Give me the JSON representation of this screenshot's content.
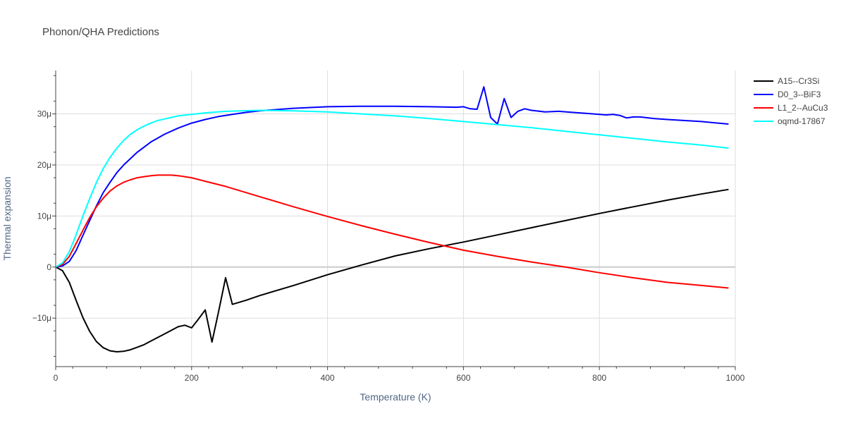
{
  "chart_data": {
    "type": "line",
    "title": "Phonon/QHA Predictions",
    "xlabel": "Temperature (K)",
    "ylabel": "Thermal expansion",
    "xlim": [
      0,
      1000
    ],
    "ylim": [
      -19.5,
      38.5
    ],
    "y_unit_suffix": "μ",
    "grid": true,
    "legend_position": "right",
    "x_ticks": [
      0,
      200,
      400,
      600,
      800,
      1000
    ],
    "y_ticks": [
      -10,
      0,
      10,
      20,
      30
    ],
    "x_tick_labels": [
      "0",
      "200",
      "400",
      "600",
      "800",
      "1000"
    ],
    "y_tick_labels": [
      "−10μ",
      "0",
      "10μ",
      "20μ",
      "30μ"
    ],
    "series": [
      {
        "name": "A15--Cr3Si",
        "color": "#000000",
        "x": [
          0,
          10,
          20,
          30,
          40,
          50,
          60,
          70,
          80,
          90,
          100,
          110,
          120,
          130,
          140,
          150,
          160,
          170,
          180,
          190,
          200,
          210,
          220,
          230,
          240,
          250,
          260,
          280,
          300,
          350,
          400,
          450,
          500,
          550,
          600,
          650,
          700,
          750,
          800,
          850,
          900,
          950,
          990
        ],
        "y": [
          0,
          -0.7,
          -3,
          -6.5,
          -9.9,
          -12.6,
          -14.6,
          -15.8,
          -16.4,
          -16.6,
          -16.5,
          -16.2,
          -15.7,
          -15.2,
          -14.5,
          -13.8,
          -13.1,
          -12.4,
          -11.7,
          -11.4,
          -11.9,
          -10.2,
          -8.4,
          -14.7,
          -8.5,
          -2.1,
          -7.3,
          -6.5,
          -5.6,
          -3.6,
          -1.5,
          0.4,
          2.2,
          3.6,
          4.9,
          6.3,
          7.7,
          9.1,
          10.5,
          11.8,
          13.1,
          14.3,
          15.2
        ]
      },
      {
        "name": "D0_3--BiF3",
        "color": "#0000ff",
        "x": [
          0,
          10,
          20,
          30,
          40,
          50,
          60,
          70,
          80,
          90,
          100,
          120,
          140,
          160,
          180,
          200,
          220,
          240,
          260,
          280,
          300,
          350,
          400,
          450,
          500,
          550,
          590,
          600,
          610,
          620,
          630,
          640,
          650,
          660,
          670,
          680,
          690,
          700,
          720,
          740,
          760,
          780,
          800,
          810,
          820,
          830,
          840,
          850,
          860,
          880,
          900,
          950,
          990
        ],
        "y": [
          0,
          0.2,
          1.1,
          3.2,
          6.2,
          9.1,
          12,
          14.6,
          16.6,
          18.5,
          20,
          22.5,
          24.5,
          26,
          27.2,
          28.2,
          28.9,
          29.5,
          29.9,
          30.3,
          30.6,
          31.1,
          31.4,
          31.5,
          31.5,
          31.4,
          31.3,
          31.4,
          31,
          30.9,
          35.3,
          29.3,
          28,
          33,
          29.3,
          30.5,
          31,
          30.7,
          30.4,
          30.5,
          30.3,
          30.1,
          29.9,
          29.8,
          29.9,
          29.7,
          29.2,
          29.4,
          29.4,
          29.1,
          28.9,
          28.5,
          28
        ]
      },
      {
        "name": "L1_2--AuCu3",
        "color": "#ff0000",
        "x": [
          0,
          10,
          20,
          30,
          40,
          50,
          60,
          70,
          80,
          90,
          100,
          110,
          120,
          130,
          140,
          150,
          160,
          170,
          180,
          200,
          220,
          250,
          300,
          350,
          400,
          450,
          500,
          550,
          600,
          650,
          700,
          750,
          800,
          850,
          900,
          950,
          990
        ],
        "y": [
          0,
          0.5,
          2.1,
          4.6,
          7.2,
          9.7,
          11.8,
          13.5,
          14.9,
          15.9,
          16.6,
          17.1,
          17.5,
          17.7,
          17.9,
          18,
          18,
          18,
          17.9,
          17.5,
          16.8,
          15.8,
          13.8,
          11.8,
          9.9,
          8.1,
          6.4,
          4.8,
          3.3,
          2.1,
          1,
          0,
          -1.1,
          -2.1,
          -3,
          -3.6,
          -4.1
        ]
      },
      {
        "name": "oqmd-17867",
        "color": "#00ffff",
        "x": [
          0,
          10,
          20,
          30,
          40,
          50,
          60,
          70,
          80,
          90,
          100,
          110,
          120,
          130,
          140,
          150,
          160,
          170,
          180,
          200,
          220,
          250,
          300,
          350,
          400,
          450,
          500,
          550,
          600,
          650,
          700,
          750,
          800,
          850,
          900,
          950,
          990
        ],
        "y": [
          0,
          0.8,
          3,
          6.3,
          10,
          13.4,
          16.6,
          19.3,
          21.5,
          23.3,
          24.8,
          26,
          26.9,
          27.6,
          28.2,
          28.7,
          29,
          29.3,
          29.6,
          29.9,
          30.2,
          30.5,
          30.7,
          30.6,
          30.4,
          30,
          29.6,
          29.1,
          28.5,
          27.9,
          27.3,
          26.6,
          25.9,
          25.2,
          24.5,
          23.9,
          23.3
        ]
      }
    ]
  }
}
